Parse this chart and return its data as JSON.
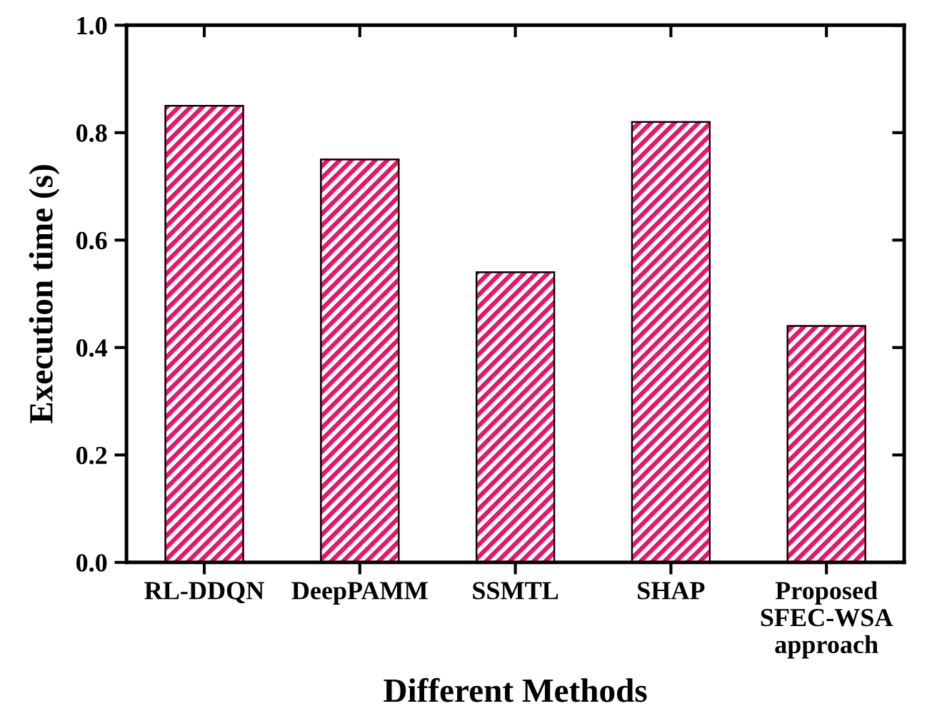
{
  "chart_data": {
    "type": "bar",
    "xlabel": "Different Methods",
    "ylabel": "Execution time (s)",
    "categories": [
      "RL-DDQN",
      "DeepPAMM",
      "SSMTL",
      "SHAP",
      "Proposed\nSFEC-WSA\napproach"
    ],
    "values": [
      0.85,
      0.75,
      0.54,
      0.82,
      0.44
    ],
    "color": "#e8166a",
    "ylim": [
      0,
      1.0
    ],
    "yticks": [
      {
        "value": 0,
        "label": "0.0"
      },
      {
        "value": 0.2,
        "label": "0.2"
      },
      {
        "value": 0.4,
        "label": "0.4"
      },
      {
        "value": 0.6,
        "label": "0.6"
      },
      {
        "value": 0.8,
        "label": "0.8"
      },
      {
        "value": 1.0,
        "label": "1.0"
      }
    ],
    "grid": false
  }
}
